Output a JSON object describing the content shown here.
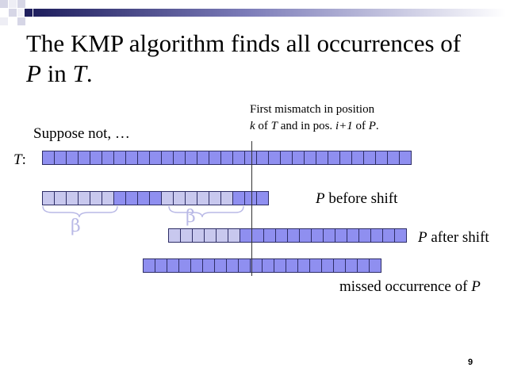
{
  "colors": {
    "cell_blue": "#8f8ff0",
    "cell_light": "#c8c8ee",
    "cell_border": "#2e2e66",
    "header_dark": "#1f1f5e",
    "header_mid": "#7b7bb8",
    "beta_color": "#b9b9e6"
  },
  "title": {
    "part1": "The KMP algorithm finds all occurrences of",
    "p": "P",
    "mid": " in ",
    "t": "T",
    "end": "."
  },
  "annotation": {
    "line1": "First mismatch in position",
    "k": "k",
    "of1": " of ",
    "T": "T",
    "and": " and in pos. ",
    "i1": "i+1",
    "of2": " of ",
    "P": "P",
    "dot": "."
  },
  "suppose": "Suppose not, …",
  "t_label": {
    "T": "T",
    "colon": ":"
  },
  "labels": {
    "before_P": "P",
    "before_rest": " before shift",
    "after_P": "P",
    "after_rest": " after shift",
    "missed_rest": "missed occurrence of ",
    "missed_P": "P"
  },
  "beta_symbol": "β",
  "slide_number": "9",
  "rows": {
    "text": {
      "cells": [
        "b",
        "b",
        "b",
        "b",
        "b",
        "b",
        "b",
        "b",
        "b",
        "b",
        "b",
        "b",
        "b",
        "b",
        "b",
        "b",
        "b",
        "b",
        "b",
        "b",
        "b",
        "b",
        "b",
        "b",
        "b",
        "b",
        "b",
        "b",
        "b",
        "b",
        "b"
      ]
    },
    "before": {
      "cells": [
        "l",
        "l",
        "l",
        "l",
        "l",
        "l",
        "b",
        "b",
        "b",
        "b",
        "l",
        "l",
        "l",
        "l",
        "l",
        "l",
        "b",
        "b",
        "b"
      ]
    },
    "after": {
      "cells": [
        "l",
        "l",
        "l",
        "l",
        "l",
        "l",
        "b",
        "b",
        "b",
        "b",
        "b",
        "b",
        "b",
        "b",
        "b",
        "b",
        "b",
        "b",
        "b",
        "b"
      ]
    },
    "missed": {
      "cells": [
        "b",
        "b",
        "b",
        "b",
        "b",
        "b",
        "b",
        "b",
        "b",
        "b",
        "b",
        "b",
        "b",
        "b",
        "b",
        "b",
        "b",
        "b",
        "b",
        "b"
      ]
    }
  }
}
